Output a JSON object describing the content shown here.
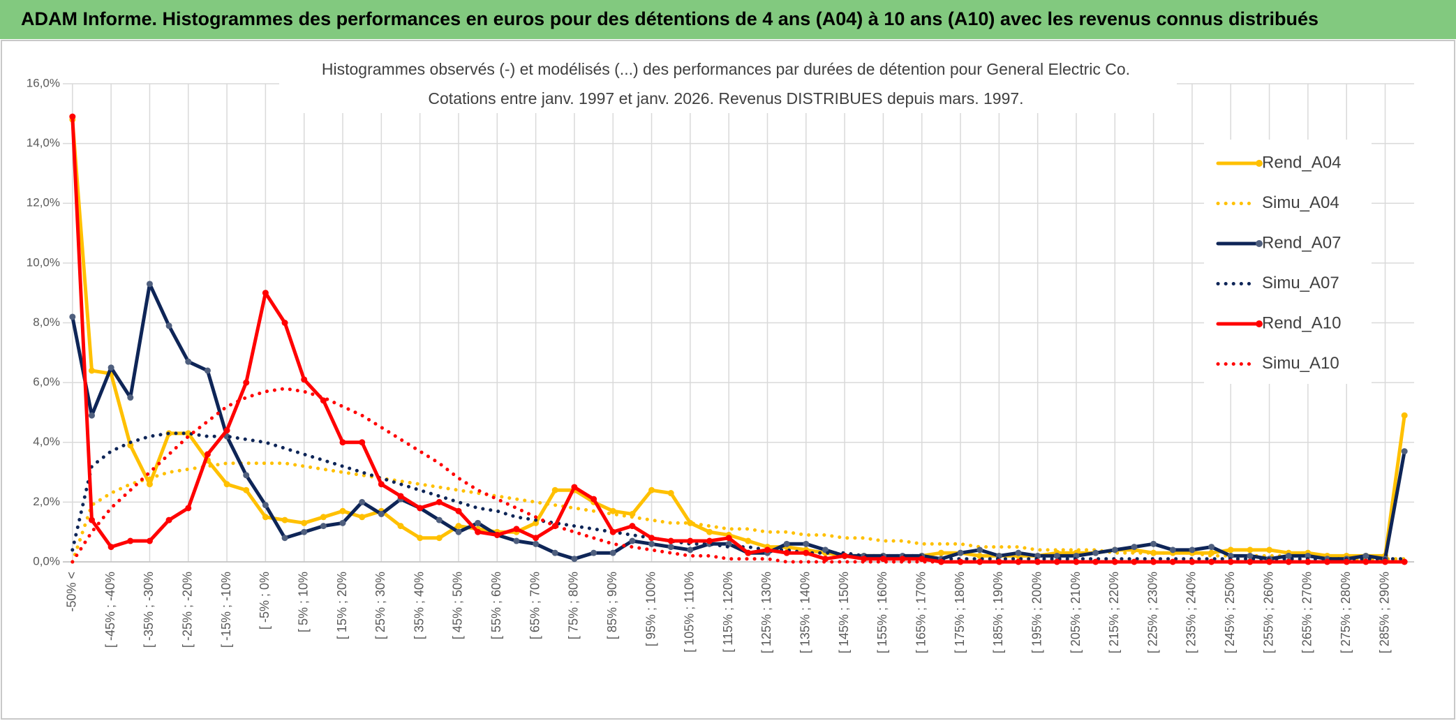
{
  "header": {
    "title": "ADAM Informe. Histogrammes des performances en euros pour des détentions de 4 ans (A04) à 10 ans (A10) avec les revenus connus distribués"
  },
  "chart_data": {
    "type": "line",
    "title": "Histogrammes observés (-) et modélisés (...) des performances par durées de détention pour General Electric Co.",
    "subtitle": "Cotations entre janv. 1997 et janv. 2026. Revenus DISTRIBUES depuis mars. 1997.",
    "categories": [
      "-50% <",
      null,
      "[ -45% ; -40%",
      null,
      "[ -35% ; -30%",
      null,
      "[ -25% ; -20%",
      null,
      "[ -15% ; -10%",
      null,
      "[ -5% ; 0%",
      null,
      "[ 5% ; 10%",
      null,
      "[ 15% ; 20%",
      null,
      "[ 25% ; 30%",
      null,
      "[ 35% ; 40%",
      null,
      "[ 45% ; 50%",
      null,
      "[ 55% ; 60%",
      null,
      "[ 65% ; 70%",
      null,
      "[ 75% ; 80%",
      null,
      "[ 85% ; 90%",
      null,
      "[ 95% ; 100%",
      null,
      "[ 105% ; 110%",
      null,
      "[ 115% ; 120%",
      null,
      "[ 125% ; 130%",
      null,
      "[ 135% ; 140%",
      null,
      "[ 145% ; 150%",
      null,
      "[ 155% ; 160%",
      null,
      "[ 165% ; 170%",
      null,
      "[ 175% ; 180%",
      null,
      "[ 185% ; 190%",
      null,
      "[ 195% ; 200%",
      null,
      "[ 205% ; 210%",
      null,
      "[ 215% ; 220%",
      null,
      "[ 225% ; 230%",
      null,
      "[ 235% ; 240%",
      null,
      "[ 245% ; 250%",
      null,
      "[ 255% ; 260%",
      null,
      "[ 265% ; 270%",
      null,
      "[ 275% ; 280%",
      null,
      "[ 285% ; 290%",
      null
    ],
    "series": [
      {
        "name": "Rend_A04",
        "color": "#FFC000",
        "marker_color": "#FFC000",
        "line_style": "solid",
        "markers": true,
        "values": [
          14.8,
          6.4,
          6.3,
          3.9,
          2.6,
          4.3,
          4.3,
          3.4,
          2.6,
          2.4,
          1.5,
          1.4,
          1.3,
          1.5,
          1.7,
          1.5,
          1.7,
          1.2,
          0.8,
          0.8,
          1.2,
          1.1,
          1.0,
          1.0,
          1.3,
          2.4,
          2.4,
          2.0,
          1.7,
          1.6,
          2.4,
          2.3,
          1.3,
          1.0,
          0.9,
          0.7,
          0.5,
          0.5,
          0.4,
          0.3,
          0.2,
          0.2,
          0.2,
          0.1,
          0.2,
          0.3,
          0.3,
          0.2,
          0.2,
          0.2,
          0.2,
          0.3,
          0.3,
          0.3,
          0.4,
          0.4,
          0.3,
          0.3,
          0.3,
          0.3,
          0.4,
          0.4,
          0.4,
          0.3,
          0.3,
          0.2,
          0.2,
          0.2,
          0.2,
          4.9
        ]
      },
      {
        "name": "Simu_A04",
        "color": "#FFC000",
        "line_style": "dotted",
        "markers": false,
        "values": [
          0,
          1.9,
          2.3,
          2.6,
          2.8,
          3.0,
          3.1,
          3.2,
          3.3,
          3.3,
          3.3,
          3.3,
          3.2,
          3.1,
          3.0,
          2.9,
          2.8,
          2.7,
          2.6,
          2.5,
          2.4,
          2.3,
          2.2,
          2.1,
          2.0,
          1.9,
          1.8,
          1.7,
          1.6,
          1.5,
          1.4,
          1.3,
          1.3,
          1.2,
          1.1,
          1.1,
          1.0,
          1.0,
          0.9,
          0.9,
          0.8,
          0.8,
          0.7,
          0.7,
          0.6,
          0.6,
          0.6,
          0.5,
          0.5,
          0.5,
          0.4,
          0.4,
          0.4,
          0.4,
          0.3,
          0.3,
          0.3,
          0.3,
          0.3,
          0.2,
          0.2,
          0.2,
          0.2,
          0.2,
          0.2,
          0.2,
          0.1,
          0.1,
          0.1,
          0.1
        ]
      },
      {
        "name": "Rend_A07",
        "color": "#0E2557",
        "marker_color": "#4F5F7E",
        "line_style": "solid",
        "markers": true,
        "values": [
          8.2,
          4.9,
          6.5,
          5.5,
          9.3,
          7.9,
          6.7,
          6.4,
          4.2,
          2.9,
          1.9,
          0.8,
          1.0,
          1.2,
          1.3,
          2.0,
          1.6,
          2.1,
          1.8,
          1.4,
          1.0,
          1.3,
          0.9,
          0.7,
          0.6,
          0.3,
          0.1,
          0.3,
          0.3,
          0.7,
          0.6,
          0.5,
          0.4,
          0.6,
          0.6,
          0.3,
          0.3,
          0.6,
          0.6,
          0.4,
          0.2,
          0.2,
          0.2,
          0.2,
          0.2,
          0.1,
          0.3,
          0.4,
          0.2,
          0.3,
          0.2,
          0.2,
          0.2,
          0.3,
          0.4,
          0.5,
          0.6,
          0.4,
          0.4,
          0.5,
          0.2,
          0.2,
          0.1,
          0.2,
          0.2,
          0.1,
          0.1,
          0.2,
          0.1,
          3.7
        ]
      },
      {
        "name": "Simu_A07",
        "color": "#0E2557",
        "line_style": "dotted",
        "markers": false,
        "values": [
          0.4,
          3.2,
          3.7,
          4.0,
          4.2,
          4.3,
          4.3,
          4.2,
          4.2,
          4.1,
          4.0,
          3.8,
          3.6,
          3.4,
          3.2,
          3.0,
          2.8,
          2.6,
          2.4,
          2.2,
          2.0,
          1.8,
          1.7,
          1.5,
          1.4,
          1.3,
          1.2,
          1.1,
          1.0,
          0.9,
          0.8,
          0.7,
          0.6,
          0.6,
          0.5,
          0.5,
          0.4,
          0.4,
          0.3,
          0.3,
          0.3,
          0.2,
          0.2,
          0.2,
          0.2,
          0.1,
          0.1,
          0.1,
          0.1,
          0.1,
          0.1,
          0.1,
          0.1,
          0.1,
          0.1,
          0.1,
          0.1,
          0.1,
          0.1,
          0.1,
          0.1,
          0.1,
          0.1,
          0.1,
          0.1,
          0.1,
          0.1,
          0.1,
          0.1,
          0.1
        ]
      },
      {
        "name": "Rend_A10",
        "color": "#FF0000",
        "marker_color": "#FF0000",
        "line_style": "solid",
        "markers": true,
        "values": [
          14.9,
          1.4,
          0.5,
          0.7,
          0.7,
          1.4,
          1.8,
          3.6,
          4.4,
          6.0,
          9.0,
          8.0,
          6.1,
          5.4,
          4.0,
          4.0,
          2.6,
          2.2,
          1.8,
          2.0,
          1.7,
          1.0,
          0.9,
          1.1,
          0.8,
          1.2,
          2.5,
          2.1,
          1.0,
          1.2,
          0.8,
          0.7,
          0.7,
          0.7,
          0.8,
          0.3,
          0.4,
          0.3,
          0.3,
          0.1,
          0.2,
          0.1,
          0.1,
          0.1,
          0.1,
          0,
          0,
          0,
          0,
          0,
          0,
          0,
          0,
          0,
          0,
          0,
          0,
          0,
          0,
          0,
          0,
          0,
          0,
          0,
          0,
          0,
          0,
          0,
          0,
          0
        ]
      },
      {
        "name": "Simu_A10",
        "color": "#FF0000",
        "line_style": "dotted",
        "markers": false,
        "values": [
          0,
          1.0,
          1.8,
          2.4,
          3.0,
          3.6,
          4.2,
          4.7,
          5.2,
          5.5,
          5.7,
          5.8,
          5.7,
          5.5,
          5.2,
          4.9,
          4.5,
          4.1,
          3.7,
          3.3,
          2.8,
          2.4,
          2.1,
          1.8,
          1.5,
          1.2,
          1.0,
          0.8,
          0.6,
          0.5,
          0.4,
          0.3,
          0.2,
          0.2,
          0.1,
          0.1,
          0.1,
          0,
          0,
          0,
          0,
          0,
          0,
          0,
          0,
          0,
          0,
          0,
          0,
          0,
          0,
          0,
          0,
          0,
          0,
          0,
          0,
          0,
          0,
          0,
          0,
          0,
          0,
          0,
          0,
          0,
          0,
          0,
          0,
          0
        ]
      }
    ],
    "ylim": [
      0,
      16
    ],
    "yticks": [
      {
        "value": 0,
        "label": "0,0%"
      },
      {
        "value": 2,
        "label": "2,0%"
      },
      {
        "value": 4,
        "label": "4,0%"
      },
      {
        "value": 6,
        "label": "6,0%"
      },
      {
        "value": 8,
        "label": "8,0%"
      },
      {
        "value": 10,
        "label": "10,0%"
      },
      {
        "value": 12,
        "label": "12,0%"
      },
      {
        "value": 14,
        "label": "14,0%"
      },
      {
        "value": 16,
        "label": "16,0%"
      }
    ],
    "grid": true,
    "legend": "right"
  }
}
